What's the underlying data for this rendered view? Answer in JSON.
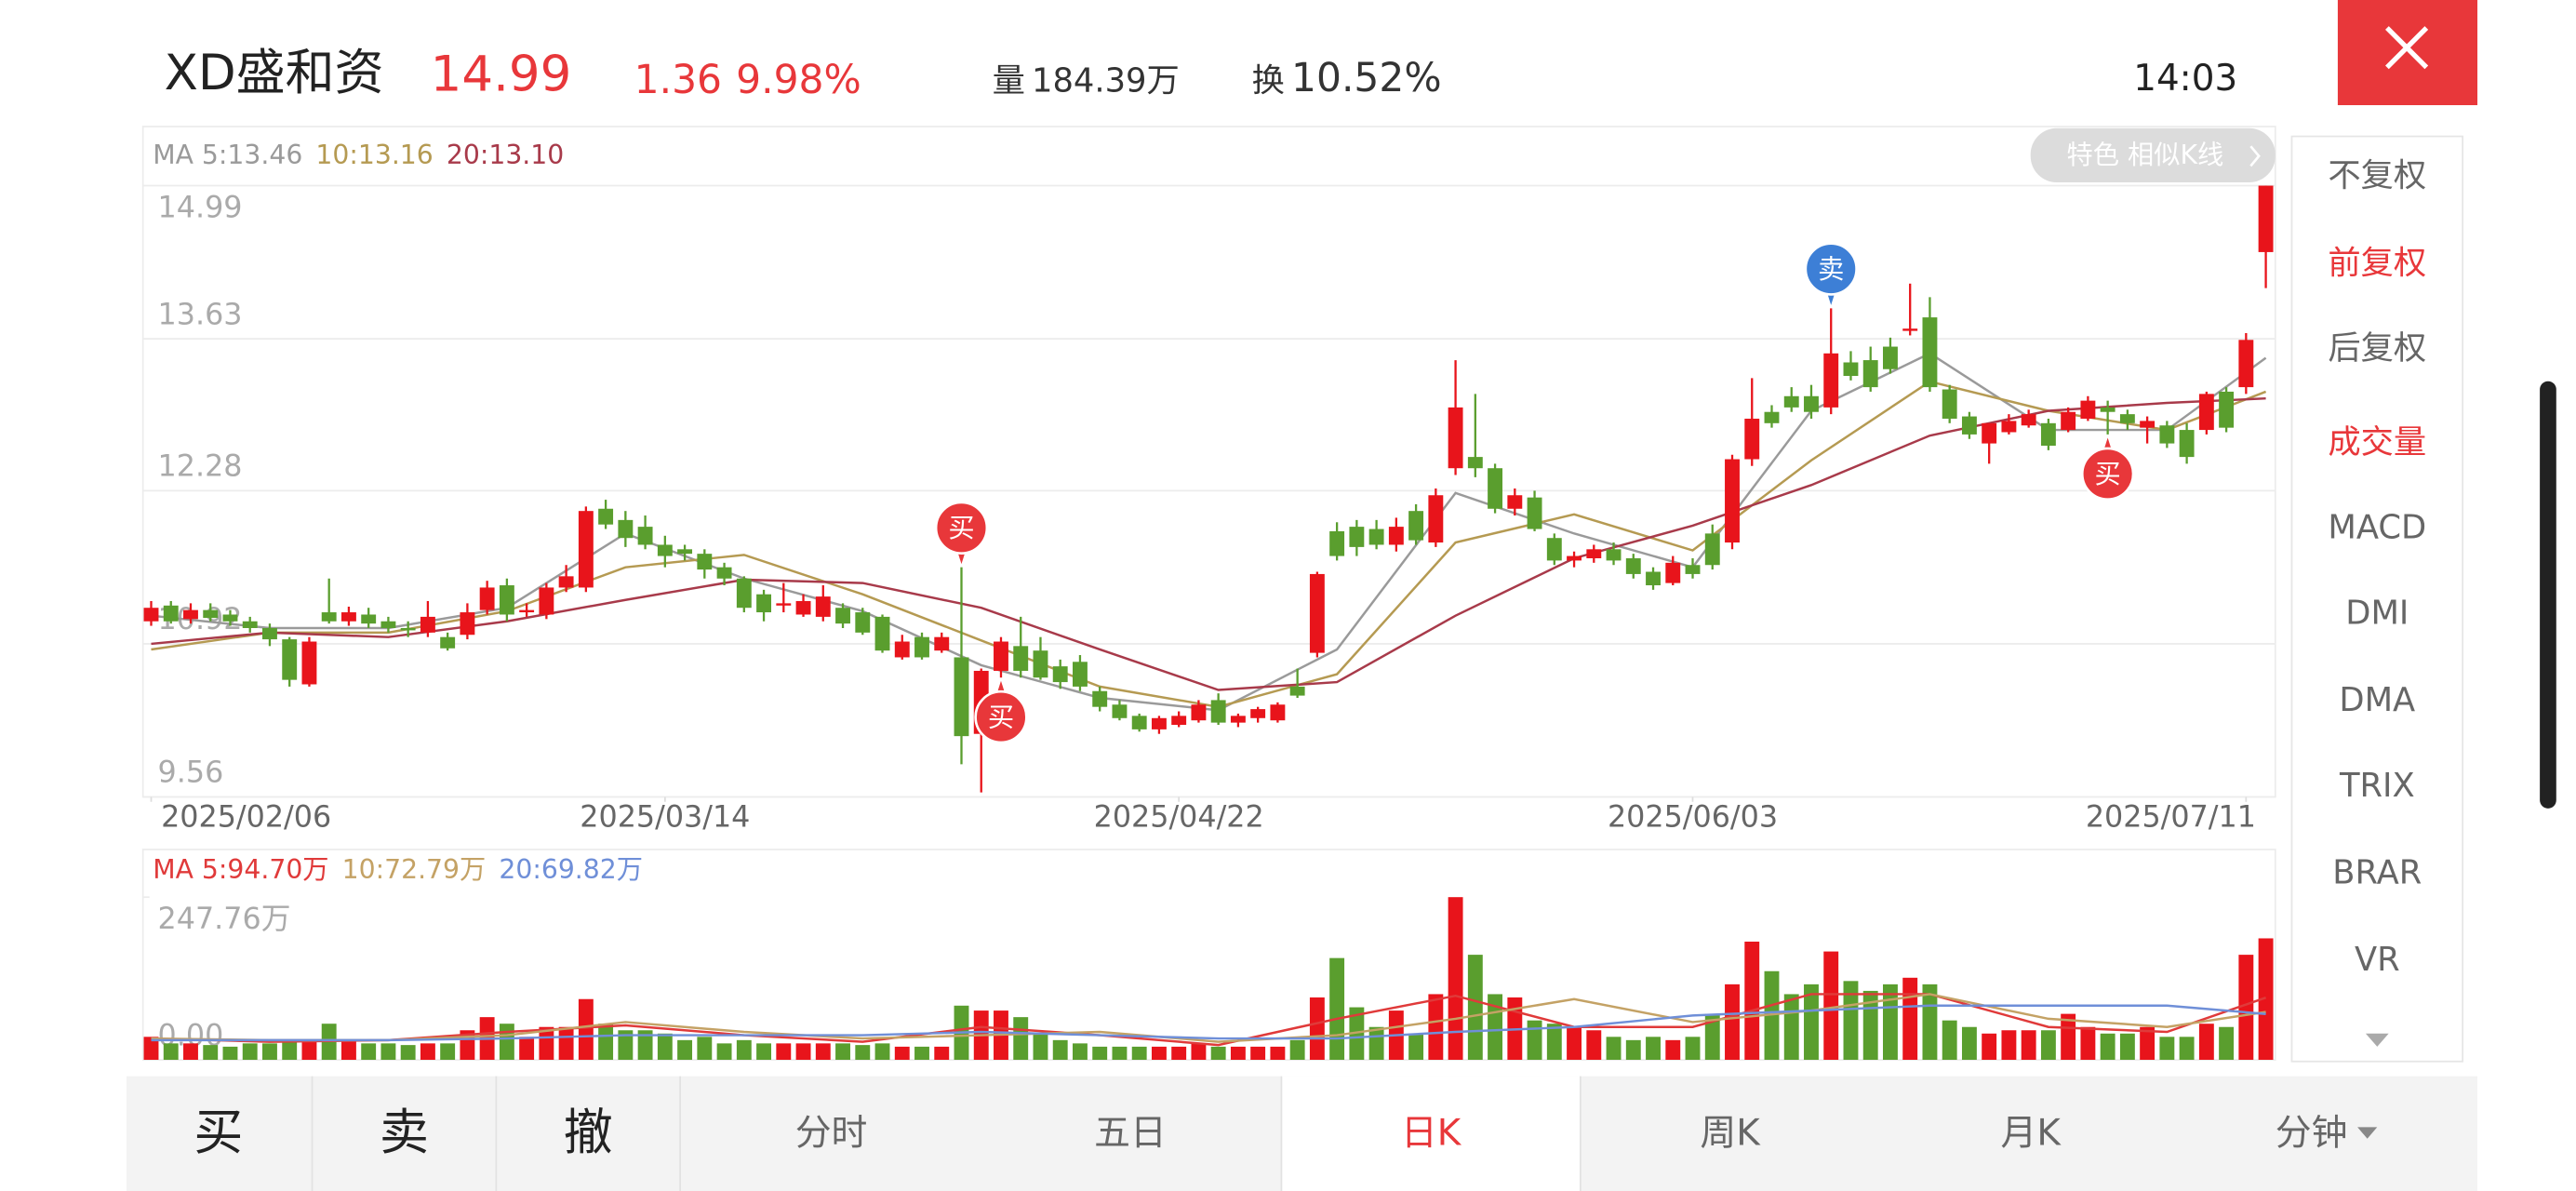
{
  "header": {
    "name": "XD盛和资",
    "price": 14.99,
    "change": 1.36,
    "change_pct": "9.98%",
    "volume_label": "量",
    "volume": "184.39万",
    "turnover_label": "换",
    "turnover": "10.52%",
    "time": "14:03"
  },
  "badge": "特色 相似K线",
  "indicator_menu": [
    {
      "label": "不复权",
      "active": false
    },
    {
      "label": "前复权",
      "active": true
    },
    {
      "label": "后复权",
      "active": false
    },
    {
      "label": "成交量",
      "active": true
    },
    {
      "label": "MACD",
      "active": false
    },
    {
      "label": "DMI",
      "active": false
    },
    {
      "label": "DMA",
      "active": false
    },
    {
      "label": "TRIX",
      "active": false
    },
    {
      "label": "BRAR",
      "active": false
    },
    {
      "label": "VR",
      "active": false
    }
  ],
  "tabs": [
    {
      "label": "买",
      "active": false
    },
    {
      "label": "卖",
      "active": false
    },
    {
      "label": "撤",
      "active": false
    },
    {
      "label": "分时",
      "active": false
    },
    {
      "label": "五日",
      "active": false
    },
    {
      "label": "日K",
      "active": true
    },
    {
      "label": "周K",
      "active": false
    },
    {
      "label": "月K",
      "active": false
    },
    {
      "label": "分钟",
      "active": false
    }
  ],
  "chart_data": [
    {
      "type": "candlestick",
      "up_color": "#e8141b",
      "down_color": "#5a9e2e",
      "ylim": [
        9.56,
        14.99
      ],
      "yticks": [
        9.56,
        10.92,
        12.28,
        13.63,
        14.99
      ],
      "grid": true,
      "xticks": [
        {
          "value": 0,
          "label": "2025/02/06"
        },
        {
          "value": 26,
          "label": "2025/03/14"
        },
        {
          "value": 52,
          "label": "2025/04/22"
        },
        {
          "value": 78,
          "label": "2025/06/03"
        },
        {
          "value": 106,
          "label": "2025/07/11"
        }
      ],
      "ohlc": [
        [
          11.12,
          11.3,
          11.08,
          11.24
        ],
        [
          11.26,
          11.3,
          11.1,
          11.12
        ],
        [
          11.14,
          11.28,
          11.1,
          11.22
        ],
        [
          11.22,
          11.28,
          11.12,
          11.15
        ],
        [
          11.18,
          11.22,
          11.08,
          11.12
        ],
        [
          11.12,
          11.16,
          11.02,
          11.06
        ],
        [
          11.06,
          11.1,
          10.9,
          10.96
        ],
        [
          10.96,
          10.98,
          10.54,
          10.6
        ],
        [
          10.56,
          10.98,
          10.54,
          10.94
        ],
        [
          11.2,
          11.5,
          11.1,
          11.12
        ],
        [
          11.12,
          11.25,
          11.08,
          11.2
        ],
        [
          11.18,
          11.24,
          11.06,
          11.1
        ],
        [
          11.12,
          11.16,
          11.02,
          11.06
        ],
        [
          11.06,
          11.12,
          10.98,
          11.04
        ],
        [
          11.02,
          11.3,
          10.98,
          11.16
        ],
        [
          10.98,
          11.02,
          10.86,
          10.88
        ],
        [
          11.0,
          11.28,
          10.96,
          11.2
        ],
        [
          11.22,
          11.48,
          11.18,
          11.42
        ],
        [
          11.44,
          11.5,
          11.12,
          11.18
        ],
        [
          11.2,
          11.28,
          11.16,
          11.22
        ],
        [
          11.18,
          11.46,
          11.14,
          11.42
        ],
        [
          11.42,
          11.62,
          11.38,
          11.52
        ],
        [
          11.42,
          12.14,
          11.38,
          12.1
        ],
        [
          12.12,
          12.2,
          11.94,
          11.98
        ],
        [
          12.02,
          12.1,
          11.78,
          11.86
        ],
        [
          11.96,
          12.06,
          11.76,
          11.8
        ],
        [
          11.8,
          11.88,
          11.6,
          11.7
        ],
        [
          11.76,
          11.8,
          11.66,
          11.72
        ],
        [
          11.72,
          11.76,
          11.5,
          11.58
        ],
        [
          11.6,
          11.64,
          11.44,
          11.5
        ],
        [
          11.5,
          11.52,
          11.2,
          11.24
        ],
        [
          11.36,
          11.4,
          11.12,
          11.2
        ],
        [
          11.26,
          11.46,
          11.2,
          11.28
        ],
        [
          11.18,
          11.36,
          11.16,
          11.3
        ],
        [
          11.16,
          11.44,
          11.12,
          11.34
        ],
        [
          11.24,
          11.28,
          11.06,
          11.1
        ],
        [
          11.2,
          11.24,
          11.0,
          11.02
        ],
        [
          11.16,
          11.18,
          10.84,
          10.86
        ],
        [
          10.8,
          11.0,
          10.78,
          10.94
        ],
        [
          10.98,
          11.02,
          10.78,
          10.8
        ],
        [
          10.86,
          11.02,
          10.84,
          10.98
        ],
        [
          10.8,
          11.6,
          9.85,
          10.1
        ],
        [
          10.12,
          10.7,
          9.6,
          10.68
        ],
        [
          10.68,
          10.98,
          10.62,
          10.94
        ],
        [
          10.9,
          11.16,
          10.62,
          10.68
        ],
        [
          10.86,
          10.98,
          10.6,
          10.62
        ],
        [
          10.72,
          10.78,
          10.52,
          10.58
        ],
        [
          10.76,
          10.82,
          10.5,
          10.54
        ],
        [
          10.5,
          10.54,
          10.32,
          10.36
        ],
        [
          10.38,
          10.42,
          10.24,
          10.26
        ],
        [
          10.28,
          10.3,
          10.14,
          10.16
        ],
        [
          10.16,
          10.28,
          10.12,
          10.26
        ],
        [
          10.2,
          10.32,
          10.18,
          10.28
        ],
        [
          10.24,
          10.42,
          10.22,
          10.38
        ],
        [
          10.42,
          10.48,
          10.2,
          10.22
        ],
        [
          10.22,
          10.3,
          10.18,
          10.28
        ],
        [
          10.26,
          10.36,
          10.22,
          10.34
        ],
        [
          10.24,
          10.4,
          10.22,
          10.38
        ],
        [
          10.54,
          10.7,
          10.44,
          10.46
        ],
        [
          10.84,
          11.56,
          10.8,
          11.54
        ],
        [
          11.92,
          12.0,
          11.66,
          11.7
        ],
        [
          11.96,
          12.02,
          11.7,
          11.78
        ],
        [
          11.94,
          12.02,
          11.76,
          11.8
        ],
        [
          11.8,
          12.04,
          11.74,
          11.96
        ],
        [
          12.1,
          12.16,
          11.8,
          11.84
        ],
        [
          11.82,
          12.3,
          11.78,
          12.24
        ],
        [
          12.48,
          13.44,
          12.42,
          13.02
        ],
        [
          12.58,
          13.14,
          12.4,
          12.48
        ],
        [
          12.48,
          12.52,
          12.08,
          12.12
        ],
        [
          12.12,
          12.3,
          12.06,
          12.24
        ],
        [
          12.22,
          12.28,
          11.92,
          11.94
        ],
        [
          11.86,
          11.9,
          11.62,
          11.66
        ],
        [
          11.66,
          11.74,
          11.6,
          11.7
        ],
        [
          11.68,
          11.8,
          11.64,
          11.76
        ],
        [
          11.76,
          11.82,
          11.62,
          11.66
        ],
        [
          11.68,
          11.72,
          11.5,
          11.54
        ],
        [
          11.56,
          11.6,
          11.4,
          11.44
        ],
        [
          11.46,
          11.7,
          11.44,
          11.64
        ],
        [
          11.62,
          11.68,
          11.5,
          11.54
        ],
        [
          11.9,
          11.98,
          11.58,
          11.62
        ],
        [
          11.82,
          12.6,
          11.76,
          12.56
        ],
        [
          12.56,
          13.28,
          12.5,
          12.92
        ],
        [
          12.98,
          13.04,
          12.84,
          12.88
        ],
        [
          13.12,
          13.2,
          12.98,
          13.02
        ],
        [
          13.12,
          13.22,
          12.92,
          12.98
        ],
        [
          13.02,
          13.9,
          12.96,
          13.5
        ],
        [
          13.42,
          13.52,
          13.26,
          13.3
        ],
        [
          13.44,
          13.56,
          13.16,
          13.2
        ],
        [
          13.56,
          13.64,
          13.32,
          13.36
        ],
        [
          13.7,
          14.12,
          13.66,
          13.72
        ],
        [
          13.82,
          14.0,
          13.16,
          13.2
        ],
        [
          13.18,
          13.22,
          12.88,
          12.92
        ],
        [
          12.94,
          12.98,
          12.74,
          12.78
        ],
        [
          12.7,
          12.86,
          12.52,
          12.88
        ],
        [
          12.8,
          12.96,
          12.78,
          12.9
        ],
        [
          12.86,
          13.0,
          12.84,
          12.96
        ],
        [
          12.88,
          12.92,
          12.64,
          12.68
        ],
        [
          12.82,
          13.02,
          12.8,
          12.98
        ],
        [
          12.92,
          13.12,
          12.9,
          13.08
        ],
        [
          13.02,
          13.08,
          12.78,
          12.98
        ],
        [
          12.96,
          13.0,
          12.82,
          12.88
        ],
        [
          12.84,
          12.94,
          12.7,
          12.9
        ],
        [
          12.86,
          12.9,
          12.66,
          12.7
        ],
        [
          12.82,
          12.88,
          12.52,
          12.58
        ],
        [
          12.82,
          13.16,
          12.78,
          13.14
        ],
        [
          13.16,
          13.2,
          12.8,
          12.84
        ],
        [
          13.2,
          13.68,
          13.14,
          13.62
        ],
        [
          14.4,
          14.99,
          14.08,
          14.99
        ]
      ],
      "series": [
        {
          "name": "MA 5:13.46",
          "color": "#9a9a9a",
          "x": [
            0,
            6,
            12,
            18,
            24,
            30,
            36,
            42,
            48,
            54,
            60,
            66,
            72,
            78,
            84,
            90,
            96,
            102,
            107
          ],
          "values": [
            11.17,
            11.06,
            11.06,
            11.24,
            11.9,
            11.5,
            11.21,
            10.73,
            10.44,
            10.33,
            10.87,
            12.26,
            11.9,
            11.6,
            12.99,
            13.5,
            12.82,
            12.82,
            13.46
          ]
        },
        {
          "name": "10:13.16",
          "color": "#b59a52",
          "x": [
            0,
            6,
            12,
            18,
            24,
            30,
            36,
            42,
            48,
            54,
            60,
            66,
            72,
            78,
            84,
            90,
            96,
            102,
            107
          ],
          "values": [
            10.87,
            11.02,
            11.02,
            11.21,
            11.6,
            11.71,
            11.36,
            10.95,
            10.54,
            10.36,
            10.65,
            11.82,
            12.07,
            11.75,
            12.55,
            13.25,
            12.99,
            12.82,
            13.16
          ]
        },
        {
          "name": "20:13.10",
          "color": "#a83a4a",
          "x": [
            0,
            6,
            12,
            18,
            24,
            30,
            36,
            42,
            48,
            54,
            60,
            66,
            72,
            78,
            84,
            90,
            96,
            102,
            107
          ],
          "values": [
            10.92,
            11.02,
            10.98,
            11.12,
            11.31,
            11.49,
            11.46,
            11.24,
            10.87,
            10.51,
            10.58,
            11.17,
            11.68,
            11.97,
            12.33,
            12.77,
            12.99,
            13.06,
            13.1
          ]
        }
      ],
      "annotations": [
        {
          "text": "买",
          "x": 41,
          "position": "above",
          "color": "#e8373a"
        },
        {
          "text": "买",
          "x": 43,
          "position": "below",
          "color": "#e8373a"
        },
        {
          "text": "卖",
          "x": 85,
          "position": "above",
          "color": "#3d7fd6"
        },
        {
          "text": "买",
          "x": 99,
          "position": "below",
          "color": "#e8373a"
        }
      ]
    },
    {
      "type": "bar",
      "ylim": [
        0,
        247.76
      ],
      "yticks": [
        {
          "value": 0,
          "label": "0.00"
        },
        {
          "value": 247.76,
          "label": "247.76万"
        }
      ],
      "values": [
        35,
        25,
        25,
        22.5,
        20,
        25,
        25,
        30,
        30,
        55,
        30,
        25,
        25,
        22.5,
        25,
        25,
        45,
        65,
        55,
        35,
        50,
        50,
        92.5,
        55,
        45,
        45,
        40,
        30,
        35,
        25,
        30,
        25,
        25,
        25,
        25,
        25,
        22.5,
        25,
        20,
        20,
        20,
        82.5,
        75,
        75,
        65,
        40,
        30,
        25,
        20,
        20,
        20,
        20,
        20,
        25,
        20,
        20,
        20,
        20,
        30,
        95,
        155,
        80,
        50,
        75,
        40,
        100,
        247.76,
        160,
        100,
        95,
        60,
        55,
        50,
        45,
        35,
        30,
        35,
        30,
        35,
        70,
        115,
        180,
        135,
        100,
        115,
        165,
        120,
        105,
        115,
        125,
        115,
        60,
        50,
        40,
        45,
        45,
        45,
        70,
        50,
        40,
        40,
        50,
        35,
        35,
        55,
        50,
        160,
        185
      ],
      "series": [
        {
          "name": "MA 5:94.70万",
          "color": "#e03a3a",
          "x": [
            0,
            6,
            12,
            18,
            24,
            30,
            36,
            42,
            48,
            54,
            60,
            66,
            72,
            78,
            84,
            90,
            96,
            102,
            107
          ],
          "values": [
            32.5,
            27.5,
            30,
            42.5,
            52.5,
            37.5,
            27.5,
            50,
            37.5,
            22.5,
            62.5,
            97.5,
            50,
            50,
            100,
            100,
            50,
            42.5,
            94.7
          ]
        },
        {
          "name": "10:72.79万",
          "color": "#c4a265",
          "x": [
            0,
            6,
            12,
            18,
            24,
            30,
            36,
            42,
            48,
            54,
            60,
            66,
            72,
            78,
            84,
            90,
            96,
            102,
            107
          ],
          "values": [
            32.5,
            30,
            30,
            37.5,
            57.5,
            42.5,
            32.5,
            37.5,
            42.5,
            27.5,
            37.5,
            62.5,
            92.5,
            57.5,
            75,
            100,
            62.5,
            50,
            72.79
          ]
        },
        {
          "name": "20:69.82万",
          "color": "#6f8fd8",
          "x": [
            0,
            6,
            12,
            18,
            24,
            30,
            36,
            42,
            48,
            54,
            60,
            66,
            72,
            78,
            84,
            90,
            96,
            102,
            107
          ],
          "values": [
            30,
            30,
            30,
            32.5,
            37.5,
            37.5,
            37.5,
            42.5,
            37.5,
            32.5,
            32.5,
            42.5,
            50,
            67.5,
            75,
            82.5,
            82.5,
            82.5,
            69.82
          ]
        }
      ]
    }
  ]
}
